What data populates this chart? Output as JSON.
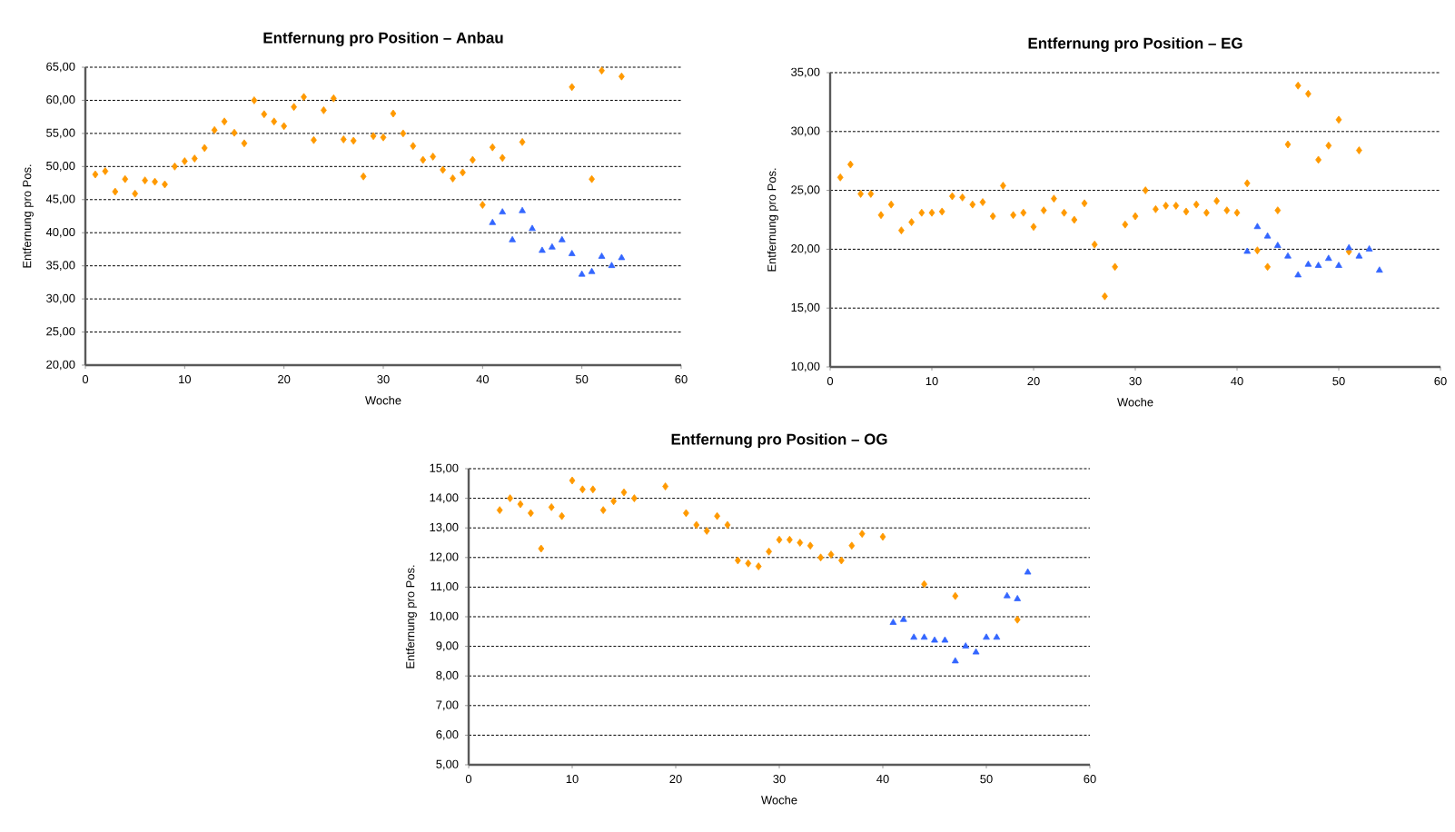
{
  "chart_data": [
    {
      "type": "scatter",
      "title": "Entfernung pro Position – Anbau",
      "xlabel": "Woche",
      "ylabel": "Entfernung pro Pos.",
      "xlim": [
        0,
        60
      ],
      "ylim": [
        20,
        65
      ],
      "grid": "y",
      "xticks": [
        0,
        10,
        20,
        30,
        40,
        50,
        60
      ],
      "yticks": [
        {
          "value": 20,
          "label": "20,00"
        },
        {
          "value": 25,
          "label": "25,00"
        },
        {
          "value": 30,
          "label": "30,00"
        },
        {
          "value": 35,
          "label": "35,00"
        },
        {
          "value": 40,
          "label": "40,00"
        },
        {
          "value": 45,
          "label": "45,00"
        },
        {
          "value": 50,
          "label": "50,00"
        },
        {
          "value": 55,
          "label": "55,00"
        },
        {
          "value": 60,
          "label": "60,00"
        },
        {
          "value": 65,
          "label": "65,00"
        }
      ],
      "series": [
        {
          "color": "#ff9900",
          "marker": "diamond",
          "x": [
            1,
            2,
            3,
            4,
            5,
            6,
            7,
            8,
            9,
            10,
            11,
            12,
            13,
            14,
            15,
            16,
            17,
            18,
            19,
            20,
            21,
            22,
            23,
            24,
            25,
            26,
            27,
            28,
            29,
            30,
            31,
            32,
            33,
            34,
            35,
            36,
            37,
            38,
            39,
            40,
            41,
            42,
            44,
            49,
            51,
            52,
            54
          ],
          "values": [
            48.8,
            49.3,
            46.2,
            48.1,
            45.9,
            47.9,
            47.7,
            47.3,
            50.0,
            50.8,
            51.2,
            52.8,
            55.5,
            56.8,
            55.1,
            53.5,
            60.0,
            57.9,
            56.8,
            56.1,
            59.0,
            60.5,
            54.0,
            58.5,
            60.3,
            54.1,
            53.9,
            48.5,
            54.6,
            54.4,
            58.0,
            55.0,
            53.1,
            51.0,
            51.5,
            49.5,
            48.2,
            49.1,
            51.0,
            44.2,
            52.9,
            51.3,
            53.7,
            62.0,
            48.1,
            64.5,
            63.6
          ]
        },
        {
          "color": "#3366ff",
          "marker": "triangle",
          "x": [
            41,
            42,
            43,
            44,
            45,
            46,
            47,
            48,
            49,
            50,
            51,
            52,
            53,
            54
          ],
          "values": [
            41.5,
            43.1,
            38.9,
            43.3,
            40.6,
            37.3,
            37.8,
            38.9,
            36.8,
            33.7,
            34.1,
            36.4,
            35.0,
            36.2
          ]
        }
      ]
    },
    {
      "type": "scatter",
      "title": "Entfernung pro Position – EG",
      "xlabel": "Woche",
      "ylabel": "Entfernung pro Pos.",
      "xlim": [
        0,
        60
      ],
      "ylim": [
        10,
        35
      ],
      "grid": "y",
      "xticks": [
        0,
        10,
        20,
        30,
        40,
        50,
        60
      ],
      "yticks": [
        {
          "value": 10,
          "label": "10,00"
        },
        {
          "value": 15,
          "label": "15,00"
        },
        {
          "value": 20,
          "label": "20,00"
        },
        {
          "value": 25,
          "label": "25,00"
        },
        {
          "value": 30,
          "label": "30,00"
        },
        {
          "value": 35,
          "label": "35,00"
        }
      ],
      "series": [
        {
          "color": "#ff9900",
          "marker": "diamond",
          "x": [
            1,
            2,
            3,
            4,
            5,
            6,
            7,
            8,
            9,
            10,
            11,
            12,
            13,
            14,
            15,
            16,
            17,
            18,
            19,
            20,
            21,
            22,
            23,
            24,
            25,
            26,
            27,
            28,
            29,
            30,
            31,
            32,
            33,
            34,
            35,
            36,
            37,
            38,
            39,
            40,
            41,
            42,
            43,
            44,
            45,
            46,
            47,
            48,
            49,
            50,
            51,
            52
          ],
          "values": [
            26.1,
            27.2,
            24.7,
            24.7,
            22.9,
            23.8,
            21.6,
            22.3,
            23.1,
            23.1,
            23.2,
            24.5,
            24.4,
            23.8,
            24.0,
            22.8,
            25.4,
            22.9,
            23.1,
            21.9,
            23.3,
            24.3,
            23.1,
            22.5,
            23.9,
            20.4,
            16.0,
            18.5,
            22.1,
            22.8,
            25.0,
            23.4,
            23.7,
            23.7,
            23.2,
            23.8,
            23.1,
            24.1,
            23.3,
            23.1,
            25.6,
            19.9,
            18.5,
            23.3,
            28.9,
            33.9,
            33.2,
            27.6,
            28.8,
            31.0,
            19.8,
            28.4
          ]
        },
        {
          "color": "#3366ff",
          "marker": "triangle",
          "x": [
            41,
            42,
            43,
            44,
            45,
            46,
            47,
            48,
            49,
            50,
            51,
            52,
            53,
            54
          ],
          "values": [
            19.8,
            21.9,
            21.1,
            20.3,
            19.4,
            17.8,
            18.7,
            18.6,
            19.2,
            18.6,
            20.1,
            19.4,
            20.0,
            18.2
          ]
        }
      ]
    },
    {
      "type": "scatter",
      "title": "Entfernung pro Position – OG",
      "xlabel": "Woche",
      "ylabel": "Entfernung pro Pos.",
      "xlim": [
        0,
        60
      ],
      "ylim": [
        5,
        15
      ],
      "grid": "y",
      "xticks": [
        0,
        10,
        20,
        30,
        40,
        50,
        60
      ],
      "yticks": [
        {
          "value": 5,
          "label": "5,00"
        },
        {
          "value": 6,
          "label": "6,00"
        },
        {
          "value": 7,
          "label": "7,00"
        },
        {
          "value": 8,
          "label": "8,00"
        },
        {
          "value": 9,
          "label": "9,00"
        },
        {
          "value": 10,
          "label": "10,00"
        },
        {
          "value": 11,
          "label": "11,00"
        },
        {
          "value": 12,
          "label": "12,00"
        },
        {
          "value": 13,
          "label": "13,00"
        },
        {
          "value": 14,
          "label": "14,00"
        },
        {
          "value": 15,
          "label": "15,00"
        }
      ],
      "series": [
        {
          "color": "#ff9900",
          "marker": "diamond",
          "x": [
            3,
            4,
            5,
            6,
            7,
            8,
            9,
            10,
            11,
            12,
            13,
            14,
            15,
            16,
            19,
            21,
            22,
            23,
            24,
            25,
            26,
            27,
            28,
            29,
            30,
            31,
            32,
            33,
            34,
            35,
            36,
            37,
            38,
            40,
            44,
            47,
            53
          ],
          "values": [
            13.6,
            14.0,
            13.8,
            13.5,
            12.3,
            13.7,
            13.4,
            14.6,
            14.3,
            14.3,
            13.6,
            13.9,
            14.2,
            14.0,
            14.4,
            13.5,
            13.1,
            12.9,
            13.4,
            13.1,
            11.9,
            11.8,
            11.7,
            12.2,
            12.6,
            12.6,
            12.5,
            12.4,
            12.0,
            12.1,
            11.9,
            12.4,
            12.8,
            12.7,
            11.1,
            10.7,
            9.9
          ]
        },
        {
          "color": "#3366ff",
          "marker": "triangle",
          "x": [
            41,
            42,
            43,
            44,
            45,
            46,
            47,
            48,
            49,
            50,
            51,
            52,
            53,
            54
          ],
          "values": [
            9.8,
            9.9,
            9.3,
            9.3,
            9.2,
            9.2,
            8.5,
            9.0,
            8.8,
            9.3,
            9.3,
            10.7,
            10.6,
            11.5
          ]
        }
      ]
    }
  ]
}
